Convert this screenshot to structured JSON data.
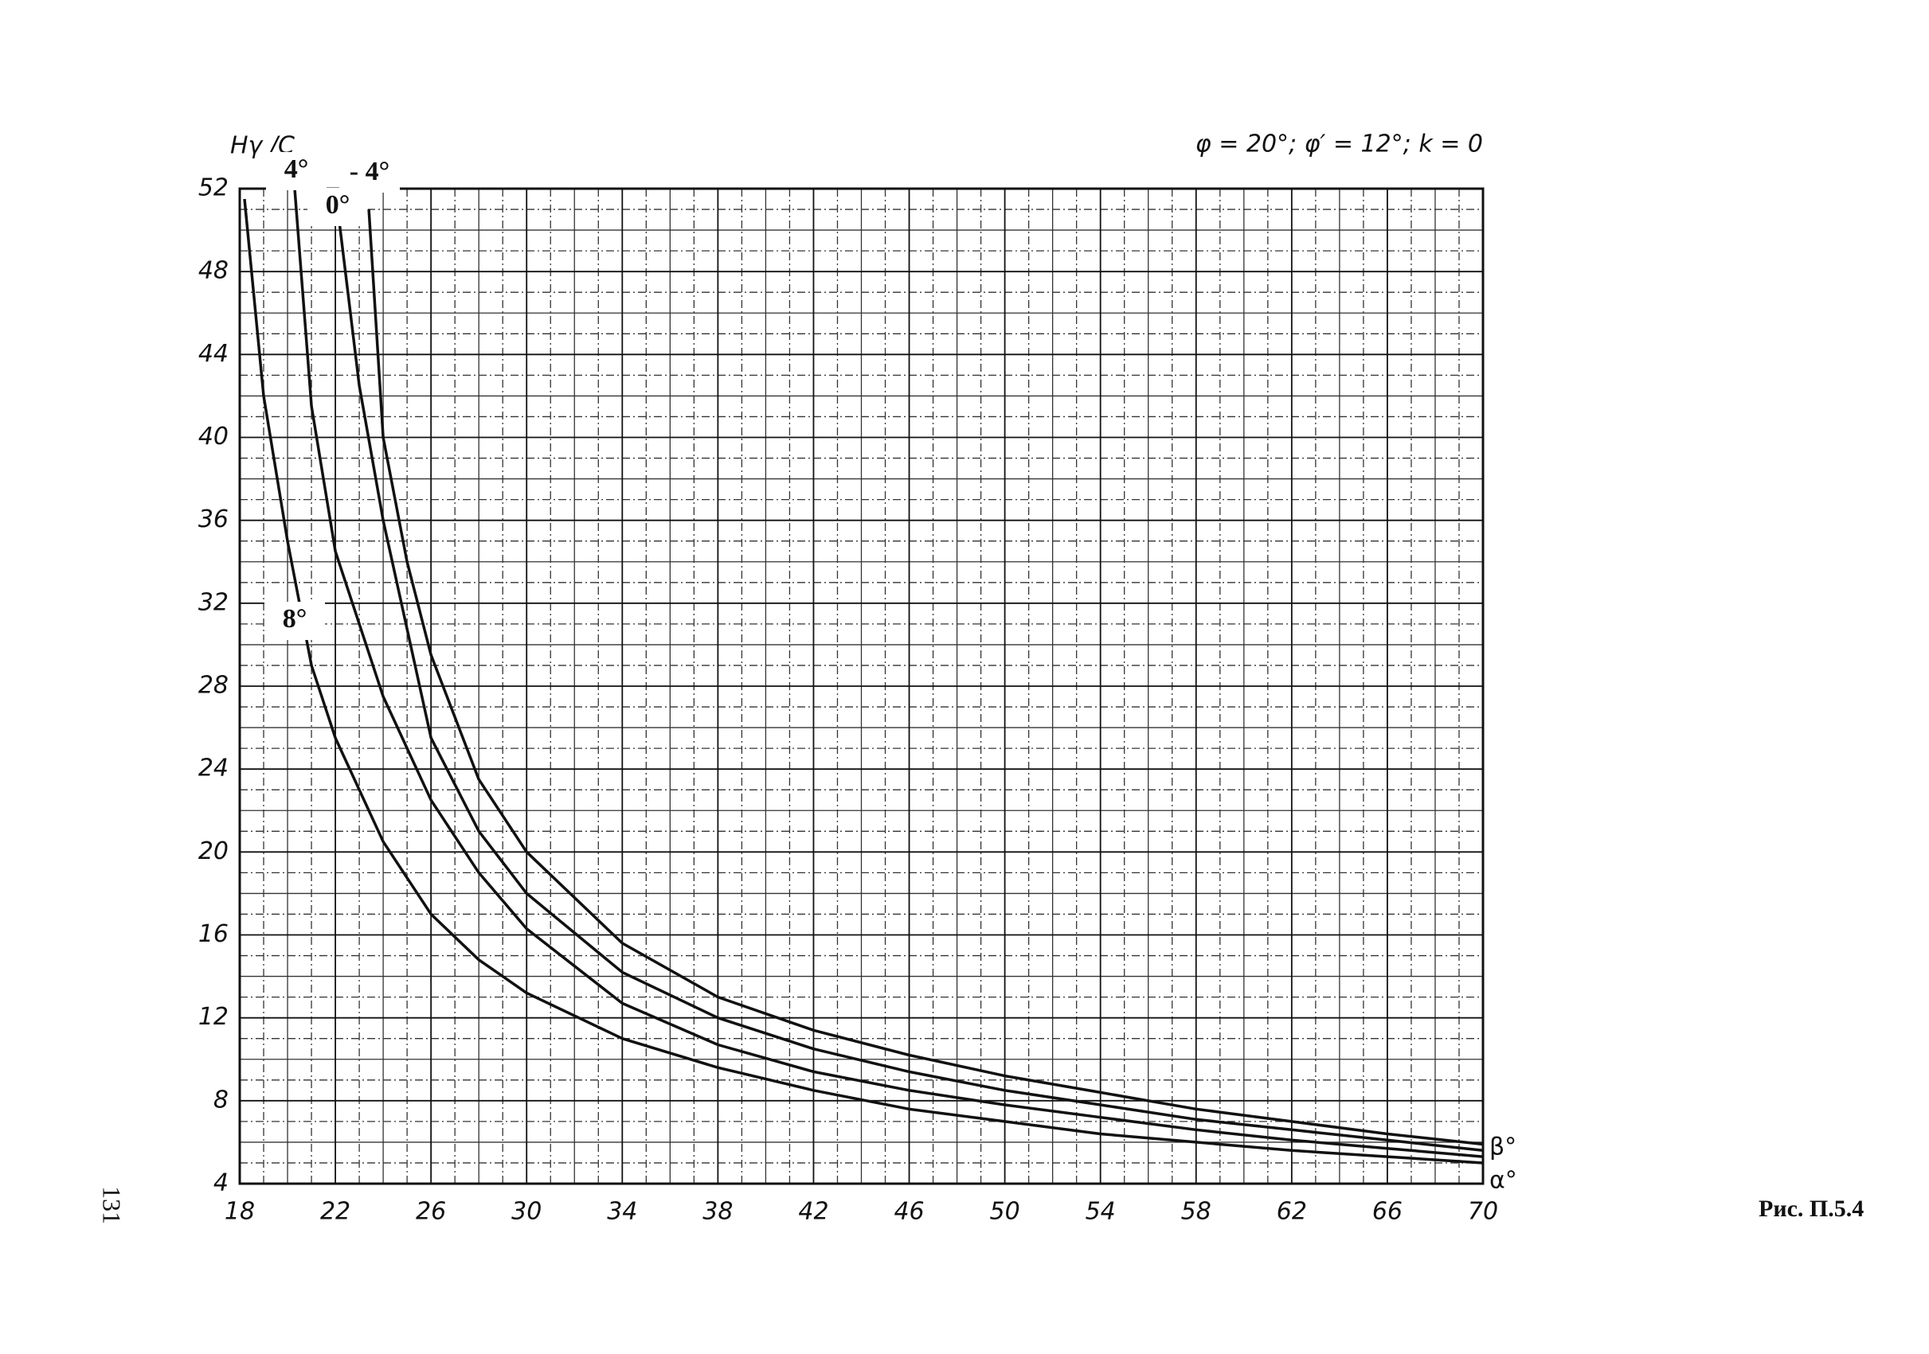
{
  "page_number": "131",
  "caption": "Рис. П.5.4",
  "chart_data": {
    "type": "line",
    "title": "φ = 20°; φ′ = 12°; k = 0",
    "y_label": "Hγ /C",
    "x_label": "α°",
    "series_label": "β°",
    "xlim": [
      18,
      70
    ],
    "ylim": [
      4,
      52
    ],
    "xticks": [
      18,
      22,
      26,
      30,
      34,
      38,
      42,
      46,
      50,
      54,
      58,
      62,
      66,
      70
    ],
    "yticks": [
      4,
      8,
      12,
      16,
      20,
      24,
      28,
      32,
      36,
      40,
      44,
      48,
      52
    ],
    "grid": {
      "x_step": 1,
      "y_step": 1
    },
    "series": [
      {
        "name": "8°",
        "color": "#111111",
        "x": [
          18.2,
          19,
          20,
          21,
          22,
          24,
          26,
          28,
          30,
          34,
          38,
          42,
          46,
          50,
          54,
          58,
          62,
          66,
          70
        ],
        "values": [
          51.5,
          42,
          35,
          29,
          25.5,
          20.5,
          17,
          14.8,
          13.2,
          11,
          9.6,
          8.5,
          7.6,
          7.0,
          6.4,
          6.0,
          5.6,
          5.3,
          5.0
        ]
      },
      {
        "name": "4°",
        "color": "#111111",
        "x": [
          20.3,
          21,
          22,
          24,
          26,
          28,
          30,
          34,
          38,
          42,
          46,
          50,
          54,
          58,
          62,
          66,
          70
        ],
        "values": [
          52,
          41.5,
          34.5,
          27.5,
          22.5,
          19,
          16.3,
          12.7,
          10.7,
          9.4,
          8.5,
          7.8,
          7.2,
          6.6,
          6.1,
          5.7,
          5.3
        ]
      },
      {
        "name": "0°",
        "color": "#111111",
        "x": [
          22.1,
          23,
          24,
          26,
          28,
          30,
          34,
          38,
          42,
          46,
          50,
          54,
          58,
          62,
          66,
          70
        ],
        "values": [
          51,
          42.5,
          36,
          25.5,
          21,
          18,
          14.2,
          12,
          10.5,
          9.4,
          8.5,
          7.8,
          7.1,
          6.6,
          6.1,
          5.6
        ]
      },
      {
        "name": "- 4°",
        "color": "#111111",
        "x": [
          23.4,
          24,
          25,
          26,
          28,
          30,
          34,
          38,
          42,
          46,
          50,
          54,
          58,
          62,
          66,
          70
        ],
        "values": [
          51,
          40,
          34,
          29.5,
          23.5,
          20,
          15.6,
          13,
          11.4,
          10.2,
          9.2,
          8.4,
          7.6,
          7.0,
          6.4,
          5.9
        ]
      }
    ]
  }
}
